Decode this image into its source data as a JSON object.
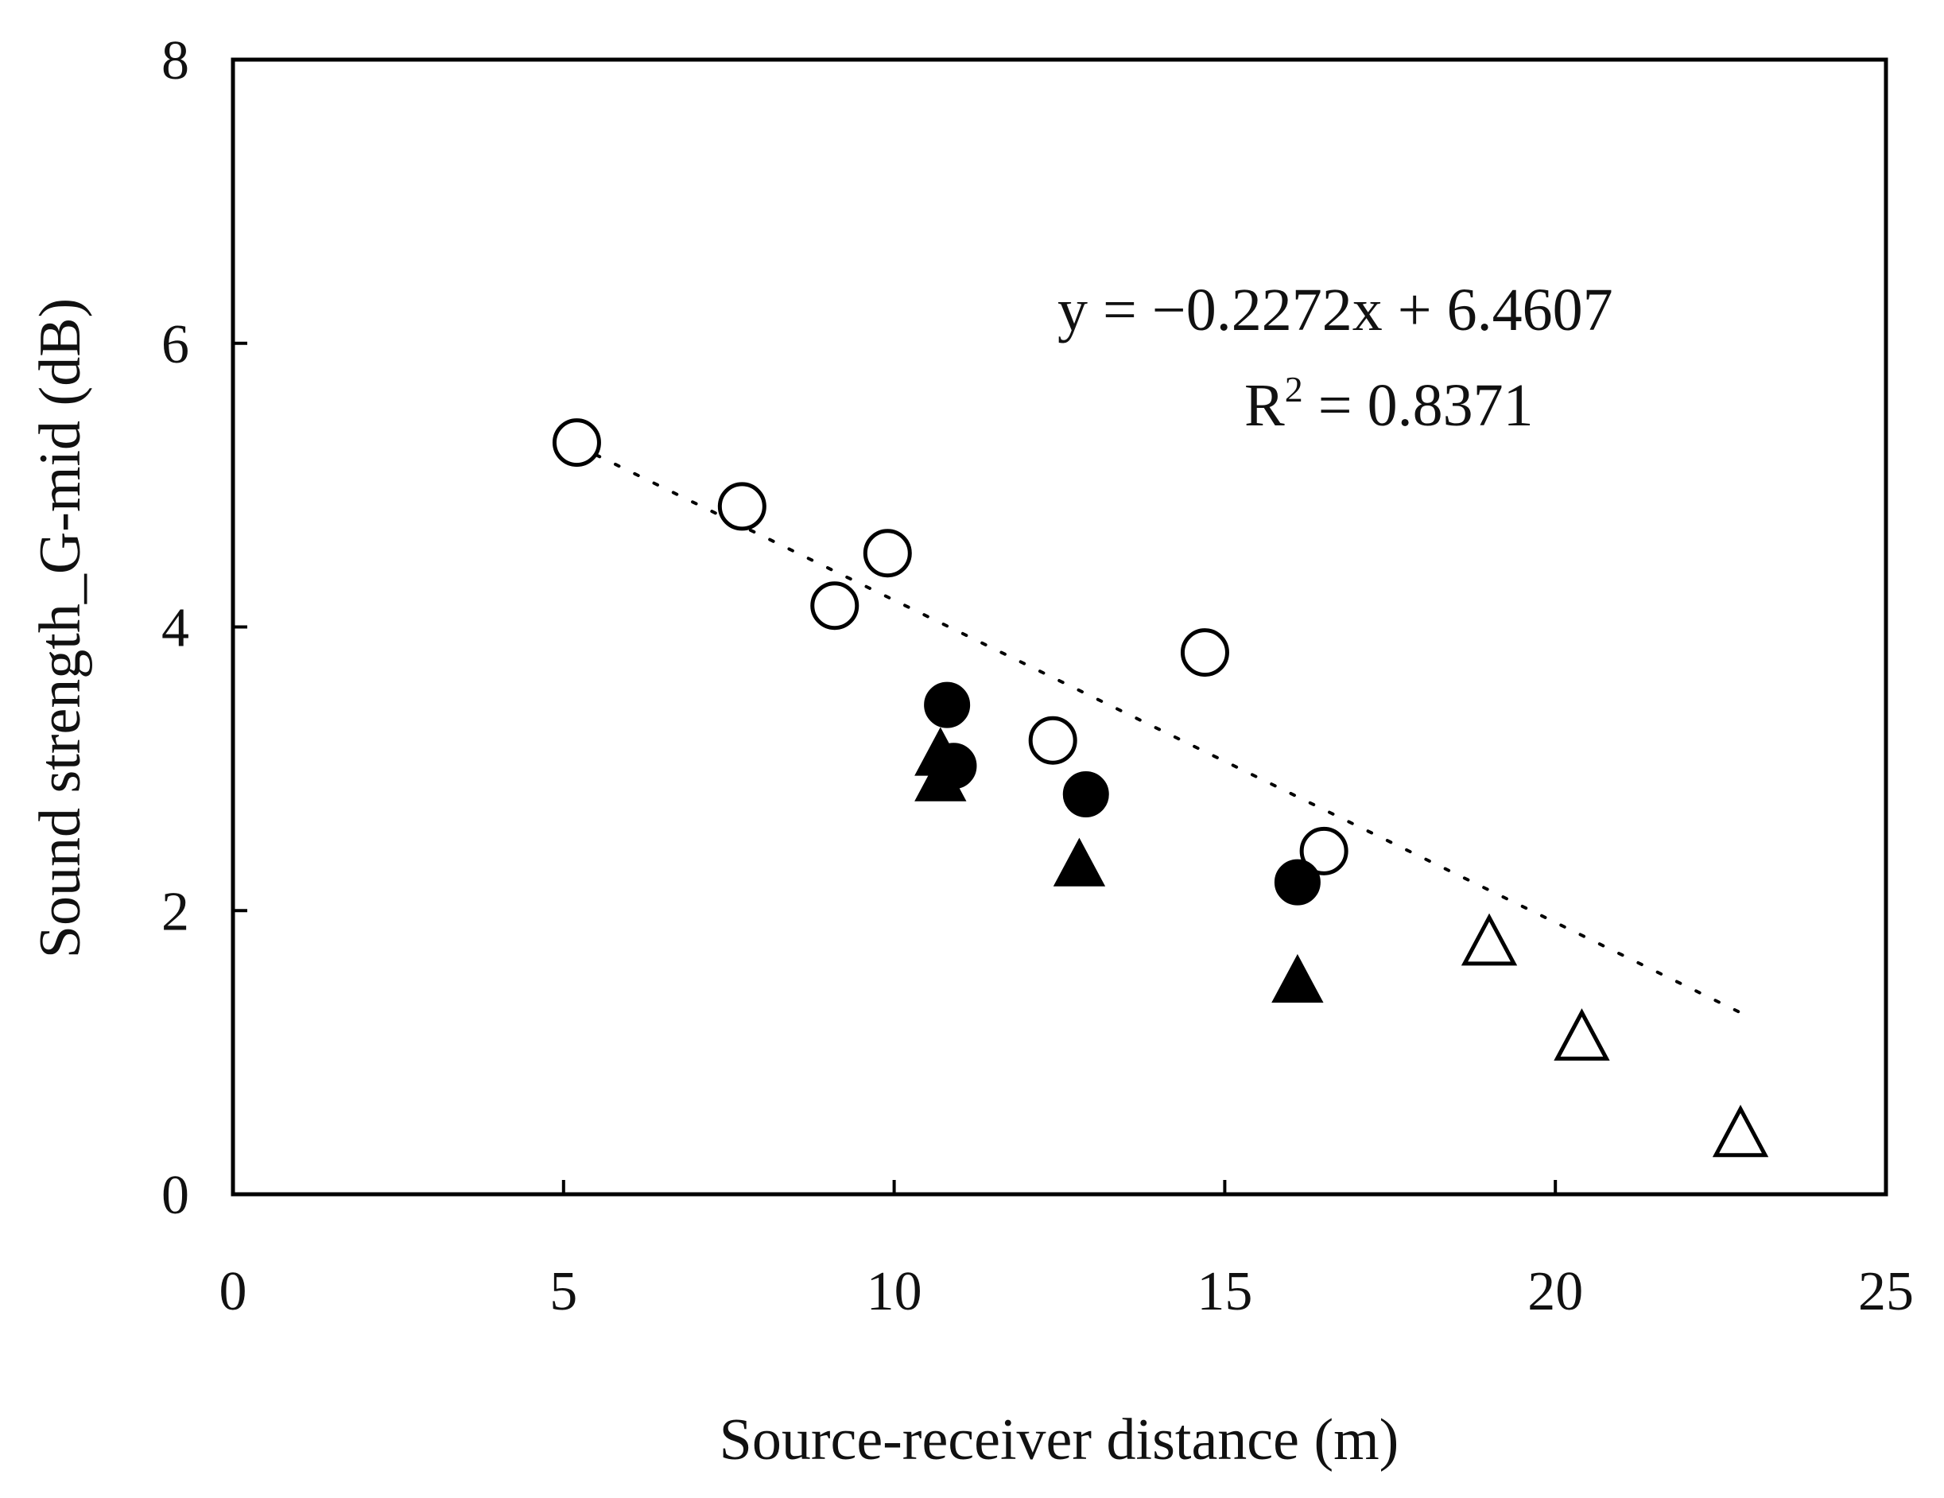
{
  "chart_data": {
    "type": "scatter",
    "xlabel": "Source-receiver distance (m)",
    "ylabel": "Sound strength_G-mid (dB)",
    "xlim": [
      0,
      25
    ],
    "ylim": [
      0,
      8
    ],
    "xticks": [
      "0",
      "5",
      "10",
      "15",
      "20",
      "25"
    ],
    "yticks": [
      "0",
      "2",
      "4",
      "6",
      "8"
    ],
    "grid": false,
    "legend": "none",
    "series": [
      {
        "marker": "open-circle",
        "color": "#000000",
        "points": [
          {
            "x": 5.2,
            "y": 5.3
          },
          {
            "x": 7.7,
            "y": 4.85
          },
          {
            "x": 9.1,
            "y": 4.15
          },
          {
            "x": 9.9,
            "y": 4.52
          },
          {
            "x": 12.4,
            "y": 3.2
          },
          {
            "x": 14.7,
            "y": 3.82
          },
          {
            "x": 16.5,
            "y": 2.42
          }
        ]
      },
      {
        "marker": "filled-circle",
        "color": "#000000",
        "points": [
          {
            "x": 10.8,
            "y": 3.45
          },
          {
            "x": 10.9,
            "y": 3.02
          },
          {
            "x": 12.9,
            "y": 2.82
          },
          {
            "x": 16.1,
            "y": 2.2
          }
        ]
      },
      {
        "marker": "filled-triangle",
        "color": "#000000",
        "points": [
          {
            "x": 10.7,
            "y": 3.08
          },
          {
            "x": 10.7,
            "y": 2.9
          },
          {
            "x": 12.8,
            "y": 2.3
          },
          {
            "x": 16.1,
            "y": 1.48
          }
        ]
      },
      {
        "marker": "open-triangle",
        "color": "#000000",
        "points": [
          {
            "x": 19.0,
            "y": 1.75
          },
          {
            "x": 20.4,
            "y": 1.08
          },
          {
            "x": 22.8,
            "y": 0.4
          }
        ]
      }
    ],
    "trendline": {
      "style": "dotted",
      "slope": -0.2272,
      "intercept": 6.4607,
      "x_from": 5.2,
      "x_to": 22.8
    },
    "annotation": {
      "equation": "y = −0.2272x + 6.4607",
      "r2_prefix": "R",
      "r2_sup": "2",
      "r2_rest": " = 0.8371"
    }
  }
}
